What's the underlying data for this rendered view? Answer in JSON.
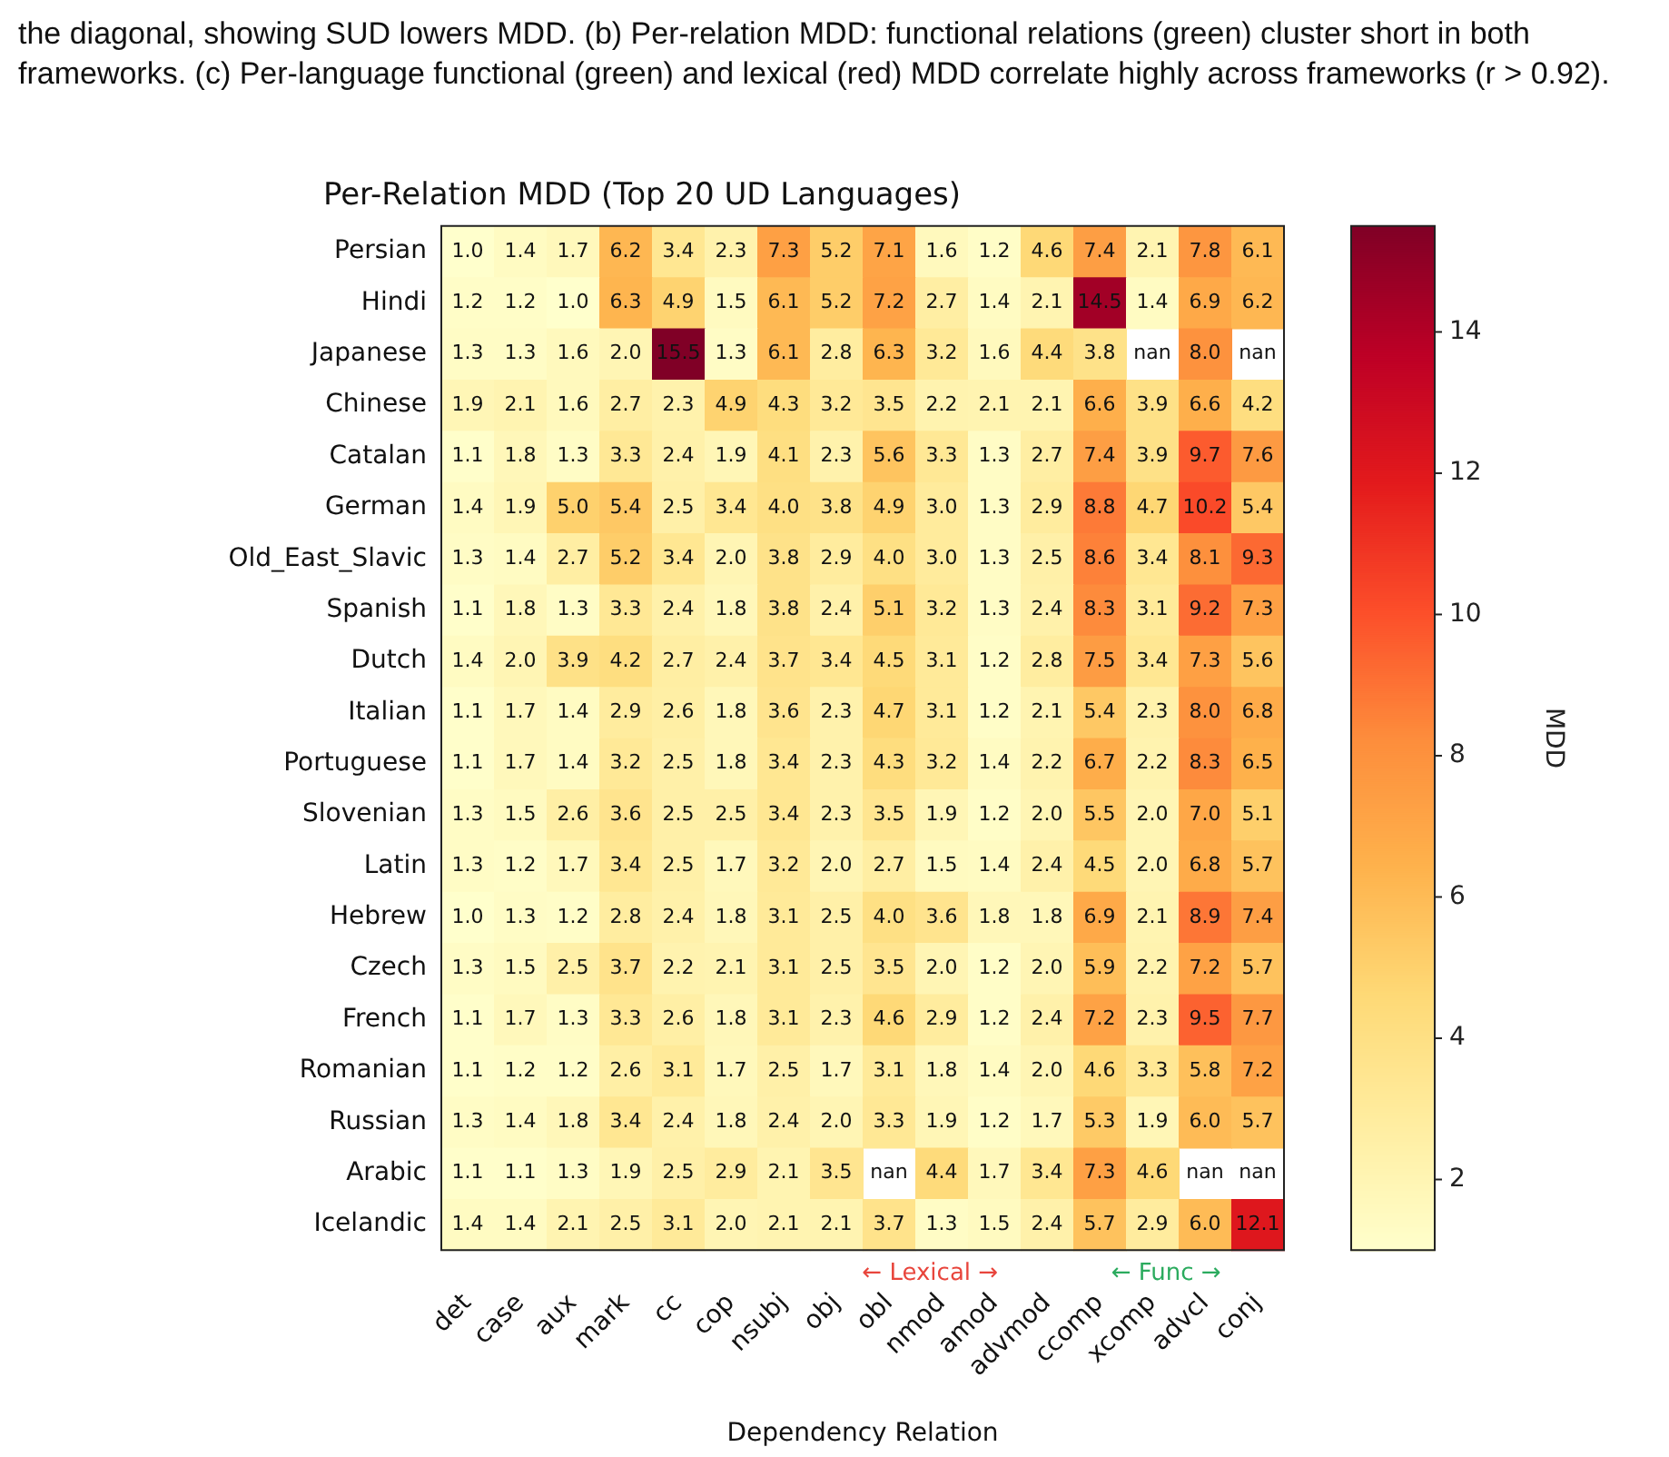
{
  "chart_data": {
    "type": "heatmap",
    "title": "Per-Relation MDD (Top 20 UD Languages)",
    "xlabel": "Dependency Relation",
    "clabel": "MDD",
    "annotations": [
      "the diagonal, showing SUD lowers MDD. (b) Per-relation MDD: functional relations (green) cluster short in both frameworks. (c) Per-language functional (green) and lexical (red) MDD correlate highly across frameworks (r > 0.92).",
      "← Lexical →",
      "← Func →"
    ],
    "categories": [
      "det",
      "case",
      "aux",
      "mark",
      "cc",
      "cop",
      "nsubj",
      "obj",
      "obl",
      "nmod",
      "amod",
      "advmod",
      "ccomp",
      "xcomp",
      "advcl",
      "conj"
    ],
    "y_categories": [
      "Persian",
      "Hindi",
      "Japanese",
      "Chinese",
      "Catalan",
      "German",
      "Old_East_Slavic",
      "Spanish",
      "Dutch",
      "Italian",
      "Portuguese",
      "Slovenian",
      "Latin",
      "Hebrew",
      "Czech",
      "French",
      "Romanian",
      "Russian",
      "Arabic",
      "Icelandic"
    ],
    "cells": [
      [
        1.0,
        1.4,
        1.7,
        6.2,
        3.4,
        2.3,
        7.3,
        5.2,
        7.1,
        1.6,
        1.2,
        4.6,
        7.4,
        2.1,
        7.8,
        6.1
      ],
      [
        1.2,
        1.2,
        1.0,
        6.3,
        4.9,
        1.5,
        6.1,
        5.2,
        7.2,
        2.7,
        1.4,
        2.1,
        14.5,
        1.4,
        6.9,
        6.2
      ],
      [
        1.3,
        1.3,
        1.6,
        2.0,
        15.5,
        1.3,
        6.1,
        2.8,
        6.3,
        3.2,
        1.6,
        4.4,
        3.8,
        null,
        8.0,
        null
      ],
      [
        1.9,
        2.1,
        1.6,
        2.7,
        2.3,
        4.9,
        4.3,
        3.2,
        3.5,
        2.2,
        2.1,
        2.1,
        6.6,
        3.9,
        6.6,
        4.2
      ],
      [
        1.1,
        1.8,
        1.3,
        3.3,
        2.4,
        1.9,
        4.1,
        2.3,
        5.6,
        3.3,
        1.3,
        2.7,
        7.4,
        3.9,
        9.7,
        7.6
      ],
      [
        1.4,
        1.9,
        5.0,
        5.4,
        2.5,
        3.4,
        4.0,
        3.8,
        4.9,
        3.0,
        1.3,
        2.9,
        8.8,
        4.7,
        10.2,
        5.4
      ],
      [
        1.3,
        1.4,
        2.7,
        5.2,
        3.4,
        2.0,
        3.8,
        2.9,
        4.0,
        3.0,
        1.3,
        2.5,
        8.6,
        3.4,
        8.1,
        9.3
      ],
      [
        1.1,
        1.8,
        1.3,
        3.3,
        2.4,
        1.8,
        3.8,
        2.4,
        5.1,
        3.2,
        1.3,
        2.4,
        8.3,
        3.1,
        9.2,
        7.3
      ],
      [
        1.4,
        2.0,
        3.9,
        4.2,
        2.7,
        2.4,
        3.7,
        3.4,
        4.5,
        3.1,
        1.2,
        2.8,
        7.5,
        3.4,
        7.3,
        5.6
      ],
      [
        1.1,
        1.7,
        1.4,
        2.9,
        2.6,
        1.8,
        3.6,
        2.3,
        4.7,
        3.1,
        1.2,
        2.1,
        5.4,
        2.3,
        8.0,
        6.8
      ],
      [
        1.1,
        1.7,
        1.4,
        3.2,
        2.5,
        1.8,
        3.4,
        2.3,
        4.3,
        3.2,
        1.4,
        2.2,
        6.7,
        2.2,
        8.3,
        6.5
      ],
      [
        1.3,
        1.5,
        2.6,
        3.6,
        2.5,
        2.5,
        3.4,
        2.3,
        3.5,
        1.9,
        1.2,
        2.0,
        5.5,
        2.0,
        7.0,
        5.1
      ],
      [
        1.3,
        1.2,
        1.7,
        3.4,
        2.5,
        1.7,
        3.2,
        2.0,
        2.7,
        1.5,
        1.4,
        2.4,
        4.5,
        2.0,
        6.8,
        5.7
      ],
      [
        1.0,
        1.3,
        1.2,
        2.8,
        2.4,
        1.8,
        3.1,
        2.5,
        4.0,
        3.6,
        1.8,
        1.8,
        6.9,
        2.1,
        8.9,
        7.4
      ],
      [
        1.3,
        1.5,
        2.5,
        3.7,
        2.2,
        2.1,
        3.1,
        2.5,
        3.5,
        2.0,
        1.2,
        2.0,
        5.9,
        2.2,
        7.2,
        5.7
      ],
      [
        1.1,
        1.7,
        1.3,
        3.3,
        2.6,
        1.8,
        3.1,
        2.3,
        4.6,
        2.9,
        1.2,
        2.4,
        7.2,
        2.3,
        9.5,
        7.7
      ],
      [
        1.1,
        1.2,
        1.2,
        2.6,
        3.1,
        1.7,
        2.5,
        1.7,
        3.1,
        1.8,
        1.4,
        2.0,
        4.6,
        3.3,
        5.8,
        7.2
      ],
      [
        1.3,
        1.4,
        1.8,
        3.4,
        2.4,
        1.8,
        2.4,
        2.0,
        3.3,
        1.9,
        1.2,
        1.7,
        5.3,
        1.9,
        6.0,
        5.7
      ],
      [
        1.1,
        1.1,
        1.3,
        1.9,
        2.5,
        2.9,
        2.1,
        3.5,
        null,
        4.4,
        1.7,
        3.4,
        7.3,
        4.6,
        null,
        null
      ],
      [
        1.4,
        1.4,
        2.1,
        2.5,
        3.1,
        2.0,
        2.1,
        2.1,
        3.7,
        1.3,
        1.5,
        2.4,
        5.7,
        2.9,
        6.0,
        12.1
      ]
    ],
    "cell_labels": [
      [
        "1.0",
        "1.4",
        "1.7",
        "6.2",
        "3.4",
        "2.3",
        "7.3",
        "5.2",
        "7.1",
        "1.6",
        "1.2",
        "4.6",
        "7.4",
        "2.1",
        "7.8",
        "6.1"
      ],
      [
        "1.2",
        "1.2",
        "1.0",
        "6.3",
        "4.9",
        "1.5",
        "6.1",
        "5.2",
        "7.2",
        "2.7",
        "1.4",
        "2.1",
        "14.5",
        "1.4",
        "6.9",
        "6.2"
      ],
      [
        "1.3",
        "1.3",
        "1.6",
        "2.0",
        "15.5",
        "1.3",
        "6.1",
        "2.8",
        "6.3",
        "3.2",
        "1.6",
        "4.4",
        "3.8",
        "nan",
        "8.0",
        "nan"
      ],
      [
        "1.9",
        "2.1",
        "1.6",
        "2.7",
        "2.3",
        "4.9",
        "4.3",
        "3.2",
        "3.5",
        "2.2",
        "2.1",
        "2.1",
        "6.6",
        "3.9",
        "6.6",
        "4.2"
      ],
      [
        "1.1",
        "1.8",
        "1.3",
        "3.3",
        "2.4",
        "1.9",
        "4.1",
        "2.3",
        "5.6",
        "3.3",
        "1.3",
        "2.7",
        "7.4",
        "3.9",
        "9.7",
        "7.6"
      ],
      [
        "1.4",
        "1.9",
        "5.0",
        "5.4",
        "2.5",
        "3.4",
        "4.0",
        "3.8",
        "4.9",
        "3.0",
        "1.3",
        "2.9",
        "8.8",
        "4.7",
        "10.2",
        "5.4"
      ],
      [
        "1.3",
        "1.4",
        "2.7",
        "5.2",
        "3.4",
        "2.0",
        "3.8",
        "2.9",
        "4.0",
        "3.0",
        "1.3",
        "2.5",
        "8.6",
        "3.4",
        "8.1",
        "9.3"
      ],
      [
        "1.1",
        "1.8",
        "1.3",
        "3.3",
        "2.4",
        "1.8",
        "3.8",
        "2.4",
        "5.1",
        "3.2",
        "1.3",
        "2.4",
        "8.3",
        "3.1",
        "9.2",
        "7.3"
      ],
      [
        "1.4",
        "2.0",
        "3.9",
        "4.2",
        "2.7",
        "2.4",
        "3.7",
        "3.4",
        "4.5",
        "3.1",
        "1.2",
        "2.8",
        "7.5",
        "3.4",
        "7.3",
        "5.6"
      ],
      [
        "1.1",
        "1.7",
        "1.4",
        "2.9",
        "2.6",
        "1.8",
        "3.6",
        "2.3",
        "4.7",
        "3.1",
        "1.2",
        "2.1",
        "5.4",
        "2.3",
        "8.0",
        "6.8"
      ],
      [
        "1.1",
        "1.7",
        "1.4",
        "3.2",
        "2.5",
        "1.8",
        "3.4",
        "2.3",
        "4.3",
        "3.2",
        "1.4",
        "2.2",
        "6.7",
        "2.2",
        "8.3",
        "6.5"
      ],
      [
        "1.3",
        "1.5",
        "2.6",
        "3.6",
        "2.5",
        "2.5",
        "3.4",
        "2.3",
        "3.5",
        "1.9",
        "1.2",
        "2.0",
        "5.5",
        "2.0",
        "7.0",
        "5.1"
      ],
      [
        "1.3",
        "1.2",
        "1.7",
        "3.4",
        "2.5",
        "1.7",
        "3.2",
        "2.0",
        "2.7",
        "1.5",
        "1.4",
        "2.4",
        "4.5",
        "2.0",
        "6.8",
        "5.7"
      ],
      [
        "1.0",
        "1.3",
        "1.2",
        "2.8",
        "2.4",
        "1.8",
        "3.1",
        "2.5",
        "4.0",
        "3.6",
        "1.8",
        "1.8",
        "6.9",
        "2.1",
        "8.9",
        "7.4"
      ],
      [
        "1.3",
        "1.5",
        "2.5",
        "3.7",
        "2.2",
        "2.1",
        "3.1",
        "2.5",
        "3.5",
        "2.0",
        "1.2",
        "2.0",
        "5.9",
        "2.2",
        "7.2",
        "5.7"
      ],
      [
        "1.1",
        "1.7",
        "1.3",
        "3.3",
        "2.6",
        "1.8",
        "3.1",
        "2.3",
        "4.6",
        "2.9",
        "1.2",
        "2.4",
        "7.2",
        "2.3",
        "9.5",
        "7.7"
      ],
      [
        "1.1",
        "1.2",
        "1.2",
        "2.6",
        "3.1",
        "1.7",
        "2.5",
        "1.7",
        "3.1",
        "1.8",
        "1.4",
        "2.0",
        "4.6",
        "3.3",
        "5.8",
        "7.2"
      ],
      [
        "1.3",
        "1.4",
        "1.8",
        "3.4",
        "2.4",
        "1.8",
        "2.4",
        "2.0",
        "3.3",
        "1.9",
        "1.2",
        "1.7",
        "5.3",
        "1.9",
        "6.0",
        "5.7"
      ],
      [
        "1.1",
        "1.1",
        "1.3",
        "1.9",
        "2.5",
        "2.9",
        "2.1",
        "3.5",
        "nan",
        "4.4",
        "1.7",
        "3.4",
        "7.3",
        "4.6",
        "nan",
        "nan"
      ],
      [
        "1.4",
        "1.4",
        "2.1",
        "2.5",
        "3.1",
        "2.0",
        "2.1",
        "2.1",
        "3.7",
        "1.3",
        "1.5",
        "2.4",
        "5.7",
        "2.9",
        "6.0",
        "12.1"
      ]
    ],
    "clim": [
      1.0,
      15.5
    ],
    "cticks": [
      2,
      4,
      6,
      8,
      10,
      12,
      14
    ]
  }
}
